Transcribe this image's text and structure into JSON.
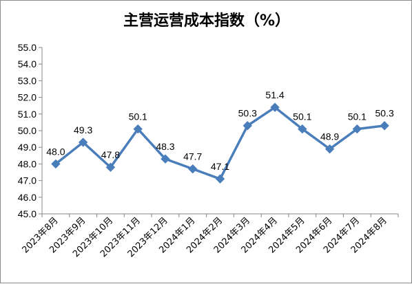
{
  "chart_data": {
    "type": "line",
    "title": "主营运营成本指数（%）",
    "xlabel": "",
    "ylabel": "",
    "categories": [
      "2023年8月",
      "2023年9月",
      "2023年10月",
      "2023年11月",
      "2023年12月",
      "2024年1月",
      "2024年2月",
      "2024年3月",
      "2024年4月",
      "2024年5月",
      "2024年6月",
      "2024年7月",
      "2024年8月"
    ],
    "series": [
      {
        "values": [
          48.0,
          49.3,
          47.8,
          50.1,
          48.3,
          47.7,
          47.1,
          50.3,
          51.4,
          50.1,
          48.9,
          50.1,
          50.3
        ],
        "labels": [
          "48.0",
          "49.3",
          "47.8",
          "50.1",
          "48.3",
          "47.7",
          "47.1",
          "50.3",
          "51.4",
          "50.1",
          "48.9",
          "50.1",
          "50.3"
        ],
        "color": "#4a7ebb",
        "marker": "diamond"
      }
    ],
    "ylim": [
      45.0,
      55.0
    ],
    "ytick_step": 1.0,
    "yticks": [
      "45.0",
      "46.0",
      "47.0",
      "48.0",
      "49.0",
      "50.0",
      "51.0",
      "52.0",
      "53.0",
      "54.0",
      "55.0"
    ],
    "grid": false,
    "legend": "none"
  }
}
